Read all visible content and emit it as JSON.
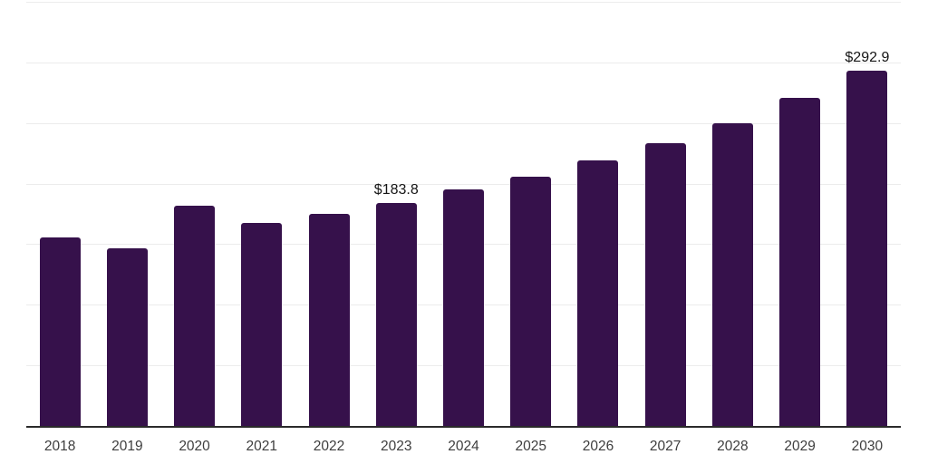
{
  "chart_data": {
    "type": "bar",
    "title": "",
    "xlabel": "",
    "ylabel": "",
    "categories": [
      "2018",
      "2019",
      "2020",
      "2021",
      "2022",
      "2023",
      "2024",
      "2025",
      "2026",
      "2027",
      "2028",
      "2029",
      "2030"
    ],
    "values": [
      155.5,
      146.3,
      181.7,
      167.7,
      175.2,
      183.8,
      194.9,
      205.6,
      218.9,
      233.3,
      250.0,
      270.6,
      292.9
    ],
    "annotations": [
      {
        "category": "2023",
        "label": "$183.8"
      },
      {
        "category": "2030",
        "label": "$292.9"
      }
    ],
    "ylim": [
      0,
      350
    ],
    "grid_interval": 50,
    "grid": true,
    "legend": false,
    "y_axis_labels_visible": false,
    "colors": {
      "bar": "#36114b",
      "gridline": "#ececec",
      "axis_line": "#2a2a2a",
      "tick_text": "#3e3e3e",
      "value_text": "#151515",
      "background": "#ffffff"
    }
  }
}
